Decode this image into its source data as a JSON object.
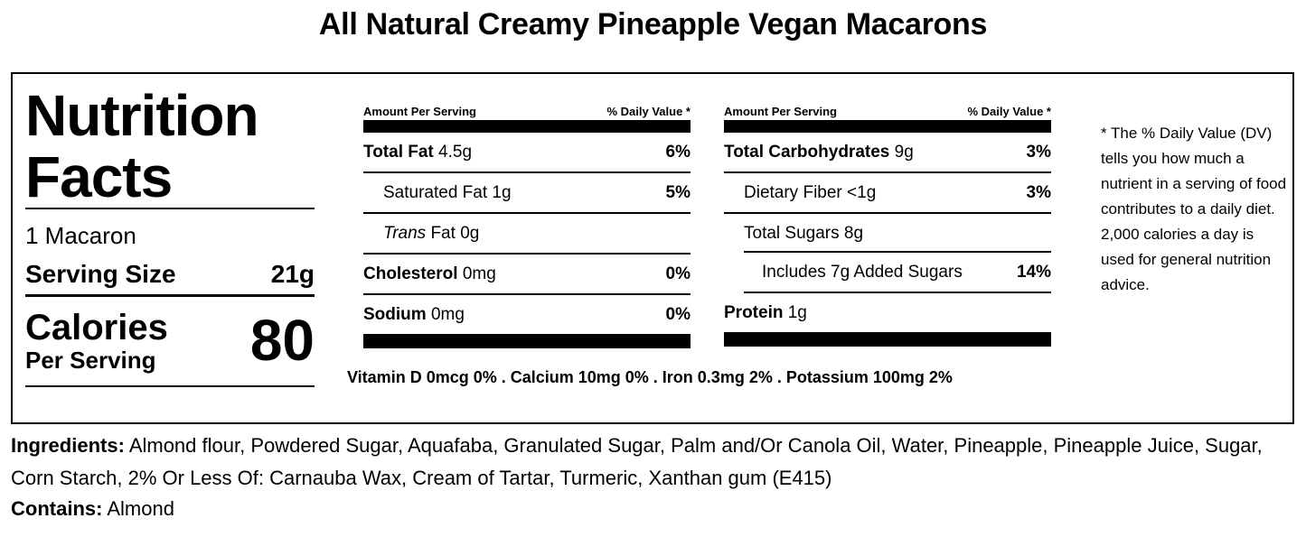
{
  "title": "All Natural Creamy Pineapple Vegan Macarons",
  "nutrition": {
    "heading_line1": "Nutrition",
    "heading_line2": "Facts",
    "servings_per": "1 Macaron",
    "serving_size_label": "Serving Size",
    "serving_size_value": "21g",
    "calories_label": "Calories",
    "calories_sub": "Per Serving",
    "calories_value": "80",
    "column_header_left": "Amount Per Serving",
    "column_header_right": "% Daily Value *",
    "col1": [
      {
        "name": "Total Fat",
        "amount": "4.5g",
        "dv": "6%"
      },
      {
        "name": "Saturated Fat",
        "amount": "1g",
        "dv": "5%"
      },
      {
        "name_italic": "Trans",
        "name": "Fat",
        "amount": "0g",
        "dv": ""
      },
      {
        "name": "Cholesterol",
        "amount": "0mg",
        "dv": "0%"
      },
      {
        "name": "Sodium",
        "amount": "0mg",
        "dv": "0%"
      }
    ],
    "col2": [
      {
        "name": "Total Carbohydrates",
        "amount": "9g",
        "dv": "3%"
      },
      {
        "name": "Dietary Fiber",
        "amount": "<1g",
        "dv": "3%"
      },
      {
        "name": "Total Sugars",
        "amount": "8g",
        "dv": ""
      },
      {
        "name": "Includes 7g Added Sugars",
        "amount": "",
        "dv": "14%"
      },
      {
        "name": "Protein",
        "amount": "1g",
        "dv": ""
      }
    ],
    "vitamins": "Vitamin D 0mcg 0% . Calcium 10mg 0% . Iron 0.3mg 2% . Potassium 100mg 2%",
    "footnote": "* The % Daily Value (DV) tells you how much a nutrient in a serving of food contributes to a daily diet. 2,000 calories a day is used for general nutrition advice."
  },
  "ingredients": {
    "label": "Ingredients:",
    "text": "Almond flour, Powdered Sugar, Aquafaba, Granulated Sugar, Palm and/Or Canola Oil, Water, Pineapple, Pineapple Juice, Sugar, Corn Starch, 2% Or Less Of: Carnauba Wax, Cream of Tartar, Turmeric, Xanthan gum (E415)"
  },
  "contains": {
    "label": "Contains:",
    "text": "Almond"
  }
}
